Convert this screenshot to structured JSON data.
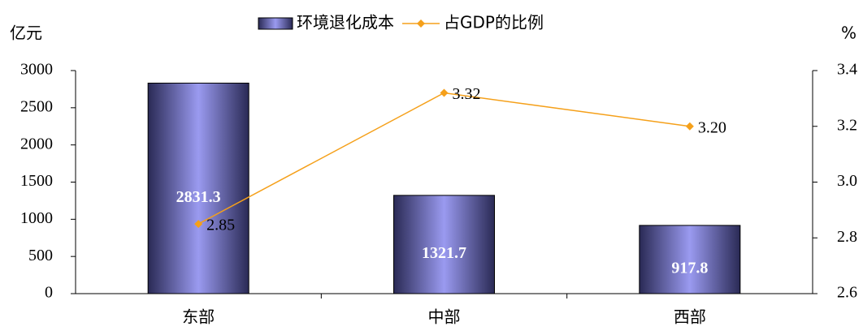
{
  "chart_data": {
    "type": "bar",
    "categories": [
      "东部",
      "中部",
      "西部"
    ],
    "series": [
      {
        "name": "环境退化成本",
        "type": "bar",
        "color": "#9a9af0",
        "values": [
          2831.3,
          1321.7,
          917.8
        ]
      },
      {
        "name": "占GDP的比例",
        "type": "line",
        "axis": "y2",
        "color": "#f5a01a",
        "values": [
          2.85,
          3.32,
          3.2
        ],
        "value_labels": [
          "2.85",
          "3.32",
          "3.20"
        ]
      }
    ],
    "ylabel": "亿元",
    "y2label": "%",
    "ylim": [
      0,
      3000
    ],
    "yticks": [
      0,
      500,
      1000,
      1500,
      2000,
      2500,
      3000
    ],
    "y2lim": [
      2.6,
      3.4
    ],
    "y2ticks": [
      2.6,
      2.8,
      {
        "value": 3,
        "label": "3.0"
      },
      3.2,
      3.4
    ],
    "legend": "top"
  }
}
